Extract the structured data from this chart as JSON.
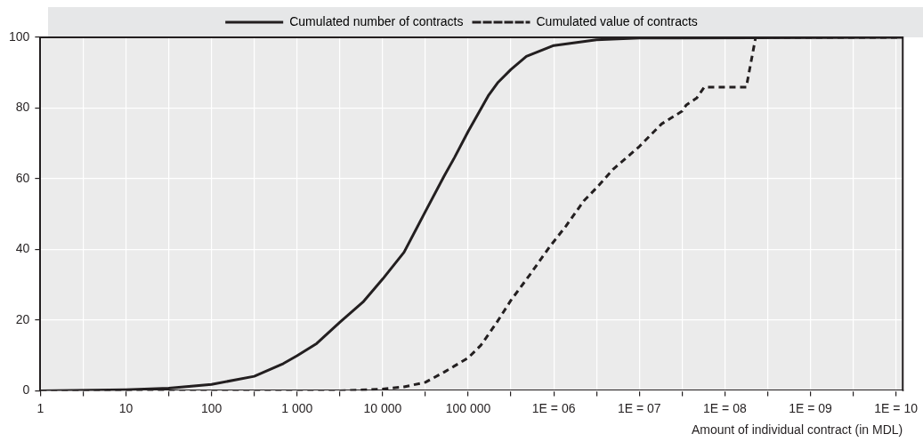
{
  "chart_data": {
    "type": "line",
    "xlabel": "Amount of individual contract (in MDL)",
    "log": "x",
    "grid": true,
    "legend": "top",
    "marker": "none",
    "xlim": [
      1,
      12000000000
    ],
    "ylim": [
      0,
      100
    ],
    "yticks": [
      0,
      20,
      40,
      60,
      80,
      100
    ],
    "xticks": [
      1,
      {
        "value": 3.162,
        "label": null
      },
      10,
      {
        "value": 31.62,
        "label": null
      },
      100,
      {
        "value": 316.2,
        "label": null
      },
      {
        "value": 1000,
        "label": "1 000"
      },
      {
        "value": 3162,
        "label": null
      },
      {
        "value": 10000,
        "label": "10 000"
      },
      {
        "value": 31620,
        "label": null
      },
      {
        "value": 100000,
        "label": "100 000"
      },
      {
        "value": 316200,
        "label": null
      },
      {
        "value": 1000000,
        "label": "1E = 06"
      },
      {
        "value": 3162000,
        "label": null
      },
      {
        "value": 10000000,
        "label": "1E = 07"
      },
      {
        "value": 31620000,
        "label": null
      },
      {
        "value": 100000000,
        "label": "1E = 08"
      },
      {
        "value": 316200000,
        "label": null
      },
      {
        "value": 1000000000,
        "label": "1E = 09"
      },
      {
        "value": 3162000000,
        "label": null
      },
      {
        "value": 10000000000,
        "label": "1E = 10"
      }
    ],
    "series": [
      {
        "name": "Cumulated number of contracts",
        "color": "#231f20",
        "line_style": "solid",
        "x": [
          1,
          10,
          31.6,
          100,
          316,
          692,
          1000,
          1700,
          3160,
          5890,
          10000,
          17800,
          31600,
          52500,
          69200,
          100000,
          174000,
          224000,
          316000,
          479000,
          1000000,
          3160000,
          10000000,
          12000000000
        ],
        "values": [
          0,
          0.3,
          0.7,
          1.8,
          4.1,
          7.7,
          9.9,
          13.4,
          19.4,
          25.1,
          31.6,
          39.2,
          50.7,
          60.8,
          66,
          73.4,
          83.7,
          87.3,
          90.9,
          94.6,
          97.7,
          99.3,
          99.8,
          100
        ]
      },
      {
        "name": "Cumulated value of contracts",
        "color": "#231f20",
        "line_style": "dashed",
        "x": [
          1,
          3160,
          10000,
          17800,
          31600,
          52500,
          100000,
          141000,
          214000,
          316000,
          525000,
          912000,
          1380000,
          2240000,
          3160000,
          5010000,
          10000000,
          18200000,
          31600000,
          35500000,
          46800000,
          57500000,
          178000000,
          229000000,
          12000000000
        ],
        "values": [
          0,
          0,
          0.5,
          1.1,
          2.4,
          5.3,
          9.3,
          12.9,
          19.2,
          25.6,
          32.8,
          41,
          46.5,
          53.7,
          57.4,
          62.8,
          69.1,
          75.5,
          79.1,
          80.9,
          82.8,
          85.9,
          85.9,
          100,
          100
        ]
      }
    ]
  }
}
